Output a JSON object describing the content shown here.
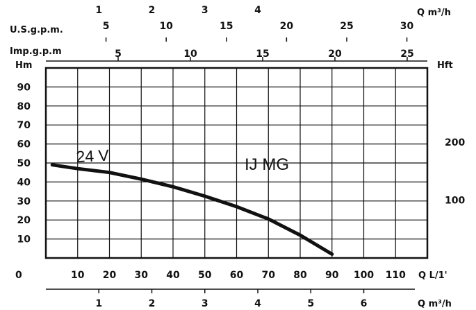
{
  "chart_data": {
    "type": "line",
    "title": "IJ MG",
    "series": [
      {
        "name": "24 V",
        "x_unit": "L/1'",
        "y_unit": "m",
        "points": [
          [
            2,
            49
          ],
          [
            10,
            47
          ],
          [
            20,
            45
          ],
          [
            30,
            41.5
          ],
          [
            40,
            37.5
          ],
          [
            50,
            32.5
          ],
          [
            60,
            27
          ],
          [
            70,
            20.5
          ],
          [
            80,
            12
          ],
          [
            90,
            2
          ]
        ]
      }
    ],
    "xlim": [
      0,
      120
    ],
    "ylim": [
      0,
      100
    ],
    "grid": true,
    "axes": {
      "left": {
        "label": "Hm",
        "ticks": [
          10,
          20,
          30,
          40,
          50,
          60,
          70,
          80,
          90
        ]
      },
      "right": {
        "label": "Hft",
        "ticks": [
          100,
          200
        ]
      },
      "bottom_lpm": {
        "label": "Q L/1'",
        "origin": "0",
        "ticks": [
          10,
          20,
          30,
          40,
          50,
          60,
          70,
          80,
          90,
          100,
          110
        ]
      },
      "bottom_m3h": {
        "label": "Q m³/h",
        "ticks": [
          1,
          2,
          3,
          4,
          5,
          6
        ]
      },
      "top_m3h": {
        "label": "Q m³/h",
        "ticks": [
          1,
          2,
          3,
          4
        ]
      },
      "top_usgpm": {
        "label": "U.S.g.p.m.",
        "ticks": [
          5,
          10,
          15,
          20,
          25,
          30
        ]
      },
      "top_impgpm": {
        "label": "Imp.g.p.m",
        "ticks": [
          5,
          10,
          15,
          20,
          25
        ]
      }
    }
  }
}
